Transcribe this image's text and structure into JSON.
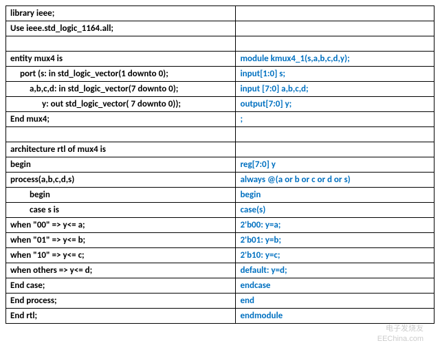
{
  "table": {
    "rows": [
      {
        "left": "library ieee;",
        "right": "",
        "leftIndent": 0
      },
      {
        "left": "Use ieee.std_logic_1164.all;",
        "right": "",
        "leftIndent": 0
      },
      {
        "left": "",
        "right": "",
        "leftIndent": 0
      },
      {
        "left": "entity mux4 is",
        "right": "module kmux4_1(s,a,b,c,d,y);",
        "leftIndent": 0
      },
      {
        "left": "port (s: in std_logic_vector(1 downto 0);",
        "right": "input[1:0] s;",
        "leftIndent": 1
      },
      {
        "left": "a,b,c,d: in std_logic_vector(7 downto 0);",
        "right": "input [7:0] a,b,c,d;",
        "leftIndent": 2
      },
      {
        "left": "y: out std_logic_vector( 7 downto 0));",
        "right": "output[7:0] y;",
        "leftIndent": 3
      },
      {
        "left": "End mux4;",
        "right": ";",
        "leftIndent": 0
      },
      {
        "left": "",
        "right": "",
        "leftIndent": 0
      },
      {
        "left": "architecture rtl of mux4 is",
        "right": "",
        "leftIndent": 0
      },
      {
        "left": "begin",
        "right": "reg[7:0] y",
        "leftIndent": 0
      },
      {
        "left": "process(a,b,c,d,s)",
        "right": "always @(a or b or c or d or s)",
        "leftIndent": 0
      },
      {
        "left": "begin",
        "right": "begin",
        "leftIndent": 2
      },
      {
        "left": "case s is",
        "right": "case(s)",
        "leftIndent": 2
      },
      {
        "left": "when \"00\" => y<= a;",
        "right": "2'b00: y=a;",
        "leftIndent": 0
      },
      {
        "left": "when \"01\" => y<= b;",
        "right": "2'b01: y=b;",
        "leftIndent": 0
      },
      {
        "left": "when \"10\" => y<= c;",
        "right": "2'b10: y=c;",
        "leftIndent": 0
      },
      {
        "left": "when others => y<= d;",
        "right": "default: y=d;",
        "leftIndent": 0
      },
      {
        "left": "End case;",
        "right": "endcase",
        "leftIndent": 0
      },
      {
        "left": "End process;",
        "right": "end",
        "leftIndent": 0
      },
      {
        "left": "End rtl;",
        "right": "endmodule",
        "leftIndent": 0
      }
    ]
  },
  "watermark": {
    "logo": "电子发烧友",
    "url": "EEChina.com"
  },
  "colors": {
    "left_text": "#000000",
    "right_text": "#0070c0",
    "border": "#000000",
    "background": "#ffffff",
    "watermark": "#cccccc"
  }
}
